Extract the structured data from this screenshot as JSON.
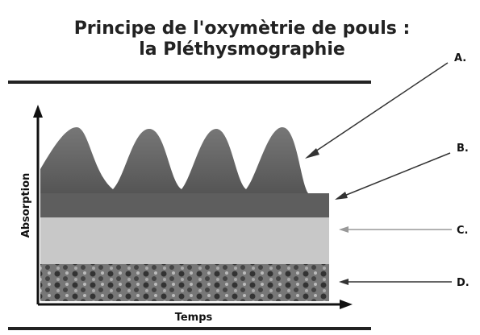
{
  "header": {
    "title": [
      "Principe de l'oxymètrie de pouls :",
      "la Pléthysmographie"
    ]
  },
  "axes": {
    "y_label": "Absorption",
    "x_label": "Temps"
  },
  "labels": [
    "A.",
    "B.",
    "C.",
    "D."
  ]
}
